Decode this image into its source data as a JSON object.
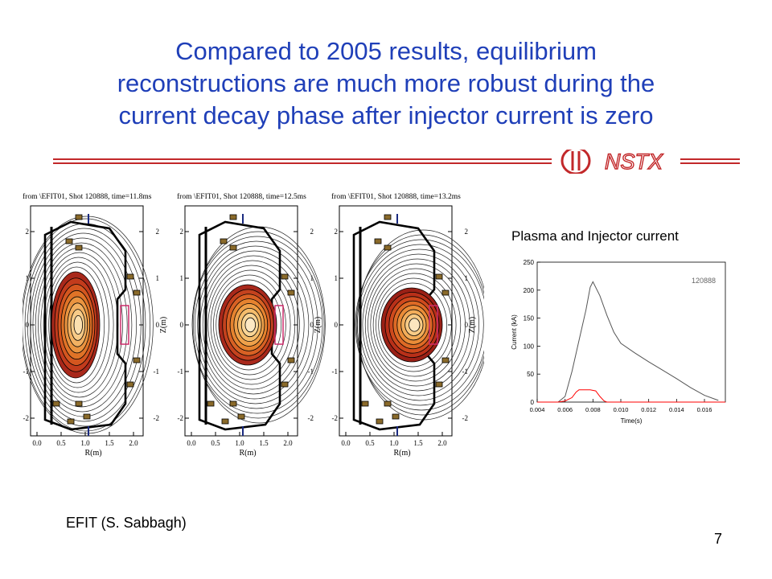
{
  "slide": {
    "title_lines": [
      "Compared to 2005 results, equilibrium",
      "reconstructions are much more robust during the",
      "current decay phase after injector current is zero"
    ],
    "logo_text": "NSTX",
    "credit": "EFIT (S. Sabbagh)",
    "page_number": "7"
  },
  "colors": {
    "title": "#1f3fb8",
    "rule": "#c2282a",
    "plasma_current": "#555555",
    "injector_current": "#ff0000"
  },
  "efit_panels": [
    {
      "header": "from \\EFIT01, Shot 120888, time=11.8ms",
      "xlabel": "R(m)",
      "ylabel": "Z(m)",
      "xticks": [
        "0.0",
        "0.5",
        "1.0",
        "1.5",
        "2.0"
      ],
      "yticks": [
        "2",
        "1",
        "0",
        "-1",
        "-2"
      ]
    },
    {
      "header": "from \\EFIT01, Shot 120888, time=12.5ms",
      "xlabel": "R(m)",
      "ylabel": "Z(m)",
      "xticks": [
        "0.0",
        "0.5",
        "1.0",
        "1.5",
        "2.0"
      ],
      "yticks": [
        "2",
        "1",
        "0",
        "-1",
        "-2"
      ]
    },
    {
      "header": "from \\EFIT01, Shot 120888, time=13.2ms",
      "xlabel": "R(m)",
      "ylabel": "Z(m)",
      "xticks": [
        "0.0",
        "0.5",
        "1.0",
        "1.5",
        "2.0"
      ],
      "yticks": [
        "2",
        "1",
        "0",
        "-1",
        "-2"
      ]
    }
  ],
  "current_plot": {
    "heading": "Plasma and Injector current",
    "chart_data": {
      "type": "line",
      "title": "Plasma and Injector current",
      "annotation": "120888",
      "xlabel": "Time(s)",
      "ylabel": "Current (kA)",
      "xlim": [
        0.004,
        0.0175
      ],
      "ylim": [
        0,
        250
      ],
      "xticks": [
        0.004,
        0.006,
        0.008,
        0.01,
        0.012,
        0.014,
        0.016
      ],
      "xtick_labels": [
        "0.004",
        "0.006",
        "0.008",
        "0.010",
        "0.012",
        "0.014",
        "0.016"
      ],
      "yticks": [
        0,
        50,
        100,
        150,
        200,
        250
      ],
      "series": [
        {
          "color": "#555555",
          "x": [
            0.004,
            0.0055,
            0.006,
            0.0065,
            0.007,
            0.0075,
            0.0078,
            0.008,
            0.0085,
            0.009,
            0.0095,
            0.01,
            0.011,
            0.012,
            0.013,
            0.014,
            0.015,
            0.016,
            0.017
          ],
          "y": [
            0,
            0,
            10,
            55,
            110,
            165,
            205,
            215,
            190,
            155,
            125,
            105,
            88,
            72,
            57,
            42,
            26,
            12,
            3
          ]
        },
        {
          "color": "#ff0000",
          "x": [
            0.004,
            0.0055,
            0.006,
            0.0065,
            0.0068,
            0.007,
            0.0078,
            0.0082,
            0.0085,
            0.0088,
            0.009,
            0.0175
          ],
          "y": [
            0,
            0,
            2,
            8,
            18,
            22,
            22,
            20,
            10,
            2,
            0,
            0
          ]
        }
      ]
    }
  }
}
